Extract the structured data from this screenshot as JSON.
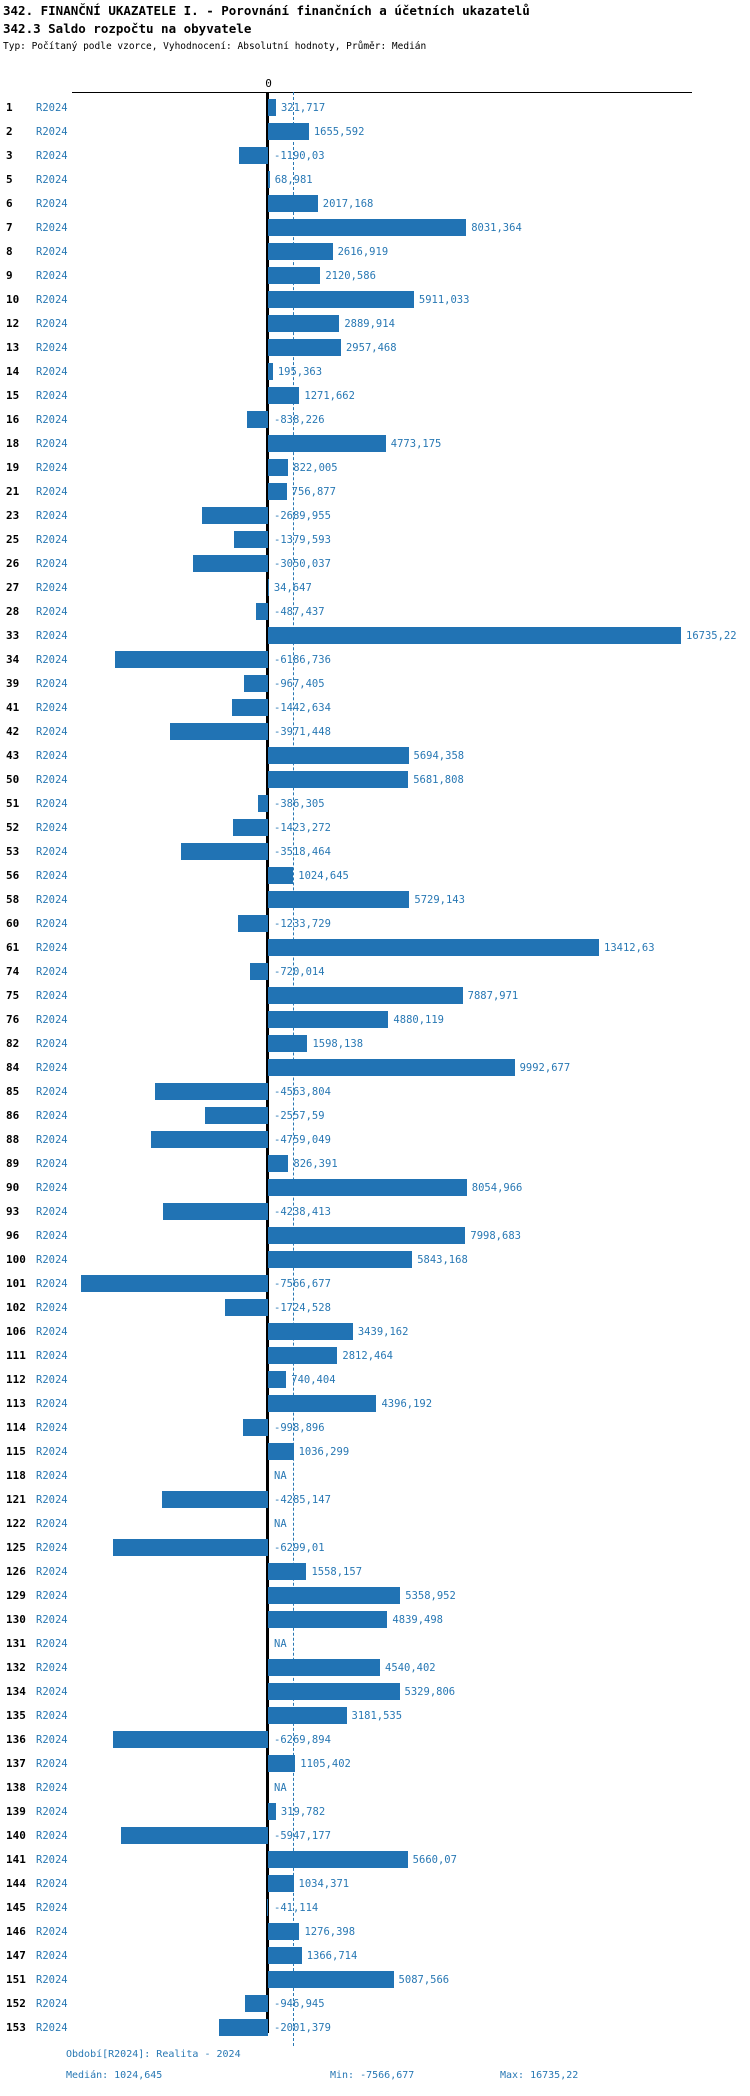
{
  "header": {
    "title_line1": "342. FINANČNÍ UKAZATELE I. - Porovnání finančních a účetních ukazatelů",
    "title_line2": "342.3 Saldo rozpočtu na obyvatele",
    "meta": "Typ: Počítaný podle vzorce, Vyhodnocení: Absolutní hodnoty, Průměr: Medián"
  },
  "axis": {
    "zero_tick_label": "0"
  },
  "chart_data": {
    "type": "bar",
    "orientation": "horizontal",
    "series_label": "R2024",
    "median": 1024.645,
    "min": -7566.677,
    "max": 16735.22,
    "xlim": [
      -7566.677,
      16735.22
    ],
    "grid": false,
    "na_text": "NA",
    "rows": [
      {
        "id": "1",
        "label": "R2024",
        "value": 321.717,
        "display": "321,717"
      },
      {
        "id": "2",
        "label": "R2024",
        "value": 1655.592,
        "display": "1655,592"
      },
      {
        "id": "3",
        "label": "R2024",
        "value": -1190.03,
        "display": "-1190,03"
      },
      {
        "id": "5",
        "label": "R2024",
        "value": 68.981,
        "display": "68,981"
      },
      {
        "id": "6",
        "label": "R2024",
        "value": 2017.168,
        "display": "2017,168"
      },
      {
        "id": "7",
        "label": "R2024",
        "value": 8031.364,
        "display": "8031,364"
      },
      {
        "id": "8",
        "label": "R2024",
        "value": 2616.919,
        "display": "2616,919"
      },
      {
        "id": "9",
        "label": "R2024",
        "value": 2120.586,
        "display": "2120,586"
      },
      {
        "id": "10",
        "label": "R2024",
        "value": 5911.033,
        "display": "5911,033"
      },
      {
        "id": "12",
        "label": "R2024",
        "value": 2889.914,
        "display": "2889,914"
      },
      {
        "id": "13",
        "label": "R2024",
        "value": 2957.468,
        "display": "2957,468"
      },
      {
        "id": "14",
        "label": "R2024",
        "value": 195.363,
        "display": "195,363"
      },
      {
        "id": "15",
        "label": "R2024",
        "value": 1271.662,
        "display": "1271,662"
      },
      {
        "id": "16",
        "label": "R2024",
        "value": -838.226,
        "display": "-838,226"
      },
      {
        "id": "18",
        "label": "R2024",
        "value": 4773.175,
        "display": "4773,175"
      },
      {
        "id": "19",
        "label": "R2024",
        "value": 822.005,
        "display": "822,005"
      },
      {
        "id": "21",
        "label": "R2024",
        "value": 756.877,
        "display": "756,877"
      },
      {
        "id": "23",
        "label": "R2024",
        "value": -2689.955,
        "display": "-2689,955"
      },
      {
        "id": "25",
        "label": "R2024",
        "value": -1379.593,
        "display": "-1379,593"
      },
      {
        "id": "26",
        "label": "R2024",
        "value": -3050.037,
        "display": "-3050,037"
      },
      {
        "id": "27",
        "label": "R2024",
        "value": 34.647,
        "display": "34,647"
      },
      {
        "id": "28",
        "label": "R2024",
        "value": -487.437,
        "display": "-487,437"
      },
      {
        "id": "33",
        "label": "R2024",
        "value": 16735.22,
        "display": "16735,22"
      },
      {
        "id": "34",
        "label": "R2024",
        "value": -6186.736,
        "display": "-6186,736"
      },
      {
        "id": "39",
        "label": "R2024",
        "value": -967.405,
        "display": "-967,405"
      },
      {
        "id": "41",
        "label": "R2024",
        "value": -1442.634,
        "display": "-1442,634"
      },
      {
        "id": "42",
        "label": "R2024",
        "value": -3971.448,
        "display": "-3971,448"
      },
      {
        "id": "43",
        "label": "R2024",
        "value": 5694.358,
        "display": "5694,358"
      },
      {
        "id": "50",
        "label": "R2024",
        "value": 5681.808,
        "display": "5681,808"
      },
      {
        "id": "51",
        "label": "R2024",
        "value": -386.305,
        "display": "-386,305"
      },
      {
        "id": "52",
        "label": "R2024",
        "value": -1423.272,
        "display": "-1423,272"
      },
      {
        "id": "53",
        "label": "R2024",
        "value": -3518.464,
        "display": "-3518,464"
      },
      {
        "id": "56",
        "label": "R2024",
        "value": 1024.645,
        "display": "1024,645"
      },
      {
        "id": "58",
        "label": "R2024",
        "value": 5729.143,
        "display": "5729,143"
      },
      {
        "id": "60",
        "label": "R2024",
        "value": -1233.729,
        "display": "-1233,729"
      },
      {
        "id": "61",
        "label": "R2024",
        "value": 13412.63,
        "display": "13412,63"
      },
      {
        "id": "74",
        "label": "R2024",
        "value": -720.014,
        "display": "-720,014"
      },
      {
        "id": "75",
        "label": "R2024",
        "value": 7887.971,
        "display": "7887,971"
      },
      {
        "id": "76",
        "label": "R2024",
        "value": 4880.119,
        "display": "4880,119"
      },
      {
        "id": "82",
        "label": "R2024",
        "value": 1598.138,
        "display": "1598,138"
      },
      {
        "id": "84",
        "label": "R2024",
        "value": 9992.677,
        "display": "9992,677"
      },
      {
        "id": "85",
        "label": "R2024",
        "value": -4563.804,
        "display": "-4563,804"
      },
      {
        "id": "86",
        "label": "R2024",
        "value": -2557.59,
        "display": "-2557,59"
      },
      {
        "id": "88",
        "label": "R2024",
        "value": -4759.049,
        "display": "-4759,049"
      },
      {
        "id": "89",
        "label": "R2024",
        "value": 826.391,
        "display": "826,391"
      },
      {
        "id": "90",
        "label": "R2024",
        "value": 8054.966,
        "display": "8054,966"
      },
      {
        "id": "93",
        "label": "R2024",
        "value": -4238.413,
        "display": "-4238,413"
      },
      {
        "id": "96",
        "label": "R2024",
        "value": 7998.683,
        "display": "7998,683"
      },
      {
        "id": "100",
        "label": "R2024",
        "value": 5843.168,
        "display": "5843,168"
      },
      {
        "id": "101",
        "label": "R2024",
        "value": -7566.677,
        "display": "-7566,677"
      },
      {
        "id": "102",
        "label": "R2024",
        "value": -1724.528,
        "display": "-1724,528"
      },
      {
        "id": "106",
        "label": "R2024",
        "value": 3439.162,
        "display": "3439,162"
      },
      {
        "id": "111",
        "label": "R2024",
        "value": 2812.464,
        "display": "2812,464"
      },
      {
        "id": "112",
        "label": "R2024",
        "value": 740.404,
        "display": "740,404"
      },
      {
        "id": "113",
        "label": "R2024",
        "value": 4396.192,
        "display": "4396,192"
      },
      {
        "id": "114",
        "label": "R2024",
        "value": -998.896,
        "display": "-998,896"
      },
      {
        "id": "115",
        "label": "R2024",
        "value": 1036.299,
        "display": "1036,299"
      },
      {
        "id": "118",
        "label": "R2024",
        "value": null,
        "display": "NA"
      },
      {
        "id": "121",
        "label": "R2024",
        "value": -4285.147,
        "display": "-4285,147"
      },
      {
        "id": "122",
        "label": "R2024",
        "value": null,
        "display": "NA"
      },
      {
        "id": "125",
        "label": "R2024",
        "value": -6299.01,
        "display": "-6299,01"
      },
      {
        "id": "126",
        "label": "R2024",
        "value": 1558.157,
        "display": "1558,157"
      },
      {
        "id": "129",
        "label": "R2024",
        "value": 5358.952,
        "display": "5358,952"
      },
      {
        "id": "130",
        "label": "R2024",
        "value": 4839.498,
        "display": "4839,498"
      },
      {
        "id": "131",
        "label": "R2024",
        "value": null,
        "display": "NA"
      },
      {
        "id": "132",
        "label": "R2024",
        "value": 4540.402,
        "display": "4540,402"
      },
      {
        "id": "134",
        "label": "R2024",
        "value": 5329.806,
        "display": "5329,806"
      },
      {
        "id": "135",
        "label": "R2024",
        "value": 3181.535,
        "display": "3181,535"
      },
      {
        "id": "136",
        "label": "R2024",
        "value": -6269.894,
        "display": "-6269,894"
      },
      {
        "id": "137",
        "label": "R2024",
        "value": 1105.402,
        "display": "1105,402"
      },
      {
        "id": "138",
        "label": "R2024",
        "value": null,
        "display": "NA"
      },
      {
        "id": "139",
        "label": "R2024",
        "value": 319.782,
        "display": "319,782"
      },
      {
        "id": "140",
        "label": "R2024",
        "value": -5947.177,
        "display": "-5947,177"
      },
      {
        "id": "141",
        "label": "R2024",
        "value": 5660.07,
        "display": "5660,07"
      },
      {
        "id": "144",
        "label": "R2024",
        "value": 1034.371,
        "display": "1034,371"
      },
      {
        "id": "145",
        "label": "R2024",
        "value": -41.114,
        "display": "-41,114"
      },
      {
        "id": "146",
        "label": "R2024",
        "value": 1276.398,
        "display": "1276,398"
      },
      {
        "id": "147",
        "label": "R2024",
        "value": 1366.714,
        "display": "1366,714"
      },
      {
        "id": "151",
        "label": "R2024",
        "value": 5087.566,
        "display": "5087,566"
      },
      {
        "id": "152",
        "label": "R2024",
        "value": -946.945,
        "display": "-946,945"
      },
      {
        "id": "153",
        "label": "R2024",
        "value": -2001.379,
        "display": "-2001,379"
      }
    ]
  },
  "footer": {
    "period": "Období[R2024]: Realita - 2024",
    "median_label": "Medián: 1024,645",
    "min_label": "Min: -7566,677",
    "max_label": "Max: 16735,22"
  },
  "colors": {
    "bar": "#2173b4",
    "blue_text": "#2878b4",
    "axis": "#000000",
    "background": "#ffffff"
  }
}
